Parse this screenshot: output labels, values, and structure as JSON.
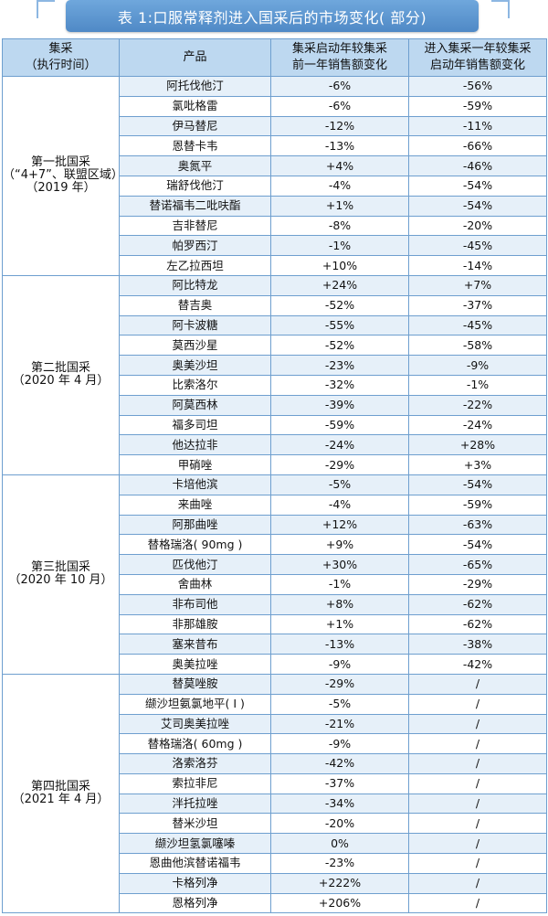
{
  "title": "表 1:口服常释剂进入国采后的市场变化( 部分)",
  "headers": {
    "batch": [
      "集采",
      "（执行时间）"
    ],
    "product": "产品",
    "change_before": [
      "集采启动年较集采",
      "前一年销售额变化"
    ],
    "change_after": [
      "进入集采一年较集采",
      "启动年销售额变化"
    ]
  },
  "groups": [
    {
      "label_lines": [
        "第一批国采",
        "（“4+7”、联盟区域）",
        "（2019 年）"
      ],
      "rows": [
        [
          "阿托伐他汀",
          "-6%",
          "-56%"
        ],
        [
          "氯吡格雷",
          "-6%",
          "-59%"
        ],
        [
          "伊马替尼",
          "-12%",
          "-11%"
        ],
        [
          "恩替卡韦",
          "-13%",
          "-66%"
        ],
        [
          "奥氮平",
          "+4%",
          "-46%"
        ],
        [
          "瑞舒伐他汀",
          "-4%",
          "-54%"
        ],
        [
          "替诺福韦二吡呋酯",
          "+1%",
          "-54%"
        ],
        [
          "吉非替尼",
          "-8%",
          "-20%"
        ],
        [
          "帕罗西汀",
          "-1%",
          "-45%"
        ],
        [
          "左乙拉西坦",
          "+10%",
          "-14%"
        ]
      ]
    },
    {
      "label_lines": [
        "第二批国采",
        "（2020 年 4 月）"
      ],
      "rows": [
        [
          "阿比特龙",
          "+24%",
          "+7%"
        ],
        [
          "替吉奥",
          "-52%",
          "-37%"
        ],
        [
          "阿卡波糖",
          "-55%",
          "-45%"
        ],
        [
          "莫西沙星",
          "-52%",
          "-58%"
        ],
        [
          "奥美沙坦",
          "-23%",
          "-9%"
        ],
        [
          "比索洛尔",
          "-32%",
          "-1%"
        ],
        [
          "阿莫西林",
          "-39%",
          "-22%"
        ],
        [
          "福多司坦",
          "-59%",
          "-24%"
        ],
        [
          "他达拉非",
          "-24%",
          "+28%"
        ],
        [
          "甲硝唑",
          "-29%",
          "+3%"
        ]
      ]
    },
    {
      "label_lines": [
        "第三批国采",
        "（2020 年 10 月）"
      ],
      "rows": [
        [
          "卡培他滨",
          "-5%",
          "-54%"
        ],
        [
          "来曲唑",
          "-4%",
          "-59%"
        ],
        [
          "阿那曲唑",
          "+12%",
          "-63%"
        ],
        [
          "替格瑞洛( 90mg )",
          "+9%",
          "-54%"
        ],
        [
          "匹伐他汀",
          "+30%",
          "-65%"
        ],
        [
          "舍曲林",
          "-1%",
          "-29%"
        ],
        [
          "非布司他",
          "+8%",
          "-62%"
        ],
        [
          "非那雄胺",
          "+1%",
          "-62%"
        ],
        [
          "塞来昔布",
          "-13%",
          "-38%"
        ],
        [
          "奥美拉唑",
          "-9%",
          "-42%"
        ]
      ]
    },
    {
      "label_lines": [
        "第四批国采",
        "（2021 年 4 月）"
      ],
      "rows": [
        [
          "替莫唑胺",
          "-29%",
          "/"
        ],
        [
          "缬沙坦氨氯地平( Ⅰ )",
          "-5%",
          "/"
        ],
        [
          "艾司奥美拉唑",
          "-21%",
          "/"
        ],
        [
          "替格瑞洛( 60mg )",
          "-9%",
          "/"
        ],
        [
          "洛索洛芬",
          "-42%",
          "/"
        ],
        [
          "索拉非尼",
          "-37%",
          "/"
        ],
        [
          "泮托拉唑",
          "-34%",
          "/"
        ],
        [
          "替米沙坦",
          "-20%",
          "/"
        ],
        [
          "缬沙坦氢氯噻嗪",
          "0%",
          "/"
        ],
        [
          "恩曲他滨替诺福韦",
          "-23%",
          "/"
        ],
        [
          "卡格列净",
          "+222%",
          "/"
        ],
        [
          "恩格列净",
          "+206%",
          "/"
        ]
      ]
    }
  ]
}
